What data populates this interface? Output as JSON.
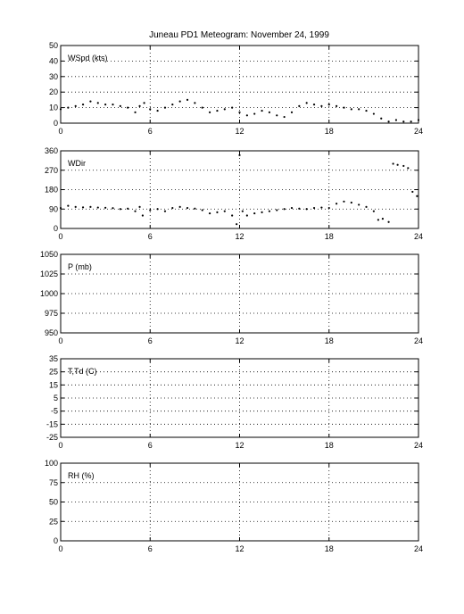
{
  "figure": {
    "title": "Juneau PD1 Meteogram:  November 24, 1999"
  },
  "chart_data": [
    {
      "type": "scatter",
      "label": "WSpd (kts)",
      "xlim": [
        0,
        24
      ],
      "ylim": [
        0,
        50
      ],
      "xticks": [
        0,
        6,
        12,
        18,
        24
      ],
      "yticks": [
        0,
        10,
        20,
        30,
        40,
        50
      ],
      "grid": true,
      "series": [
        {
          "x": [
            0,
            0.5,
            1,
            1.5,
            2,
            2.5,
            3,
            3.5,
            4,
            4.5,
            5,
            5.3,
            5.6,
            6,
            6.5,
            7,
            7.5,
            8,
            8.5,
            9,
            9.5,
            10,
            10.5,
            11,
            11.5,
            12,
            12.5,
            13,
            13.5,
            14,
            14.5,
            15,
            15.5,
            16,
            16.5,
            17,
            17.5,
            18,
            18.5,
            19,
            19.5,
            20,
            20.5,
            21,
            21.5,
            22,
            22.5,
            23,
            23.5,
            24
          ],
          "values": [
            9,
            10,
            11,
            12,
            14,
            13,
            12,
            12,
            11,
            10,
            7,
            11,
            13,
            9,
            8,
            10,
            12,
            14,
            15,
            13,
            10,
            7,
            8,
            9,
            10,
            7,
            5,
            6,
            8,
            7,
            5,
            4,
            7,
            11,
            13,
            12,
            11,
            12,
            11,
            10,
            9,
            9,
            8,
            6,
            3,
            1,
            2,
            1,
            1,
            2
          ]
        }
      ]
    },
    {
      "type": "scatter",
      "label": "WDir",
      "xlim": [
        0,
        24
      ],
      "ylim": [
        0,
        360
      ],
      "xticks": [
        0,
        6,
        12,
        18,
        24
      ],
      "yticks": [
        0,
        90,
        180,
        270,
        360
      ],
      "grid": true,
      "series": [
        {
          "x": [
            0,
            0.5,
            1,
            1.5,
            2,
            2.5,
            3,
            3.5,
            4,
            4.5,
            5,
            5.3,
            5.5,
            6,
            6.5,
            7,
            7.5,
            8,
            8.5,
            9,
            9.5,
            10,
            10.5,
            11,
            11.5,
            11.8,
            12,
            12.2,
            12.5,
            13,
            13.5,
            14,
            14.5,
            15,
            15.5,
            16,
            16.5,
            17,
            17.5,
            18,
            18.5,
            19,
            19.5,
            20,
            20.5,
            21,
            21.3,
            21.6,
            22,
            22.3,
            22.6,
            23,
            23.3,
            23.6,
            23.9
          ],
          "values": [
            95,
            105,
            100,
            98,
            100,
            97,
            96,
            94,
            90,
            92,
            80,
            100,
            60,
            85,
            90,
            80,
            95,
            100,
            95,
            92,
            85,
            70,
            75,
            80,
            60,
            20,
            340,
            80,
            60,
            70,
            75,
            80,
            85,
            90,
            95,
            92,
            90,
            95,
            97,
            95,
            115,
            125,
            120,
            110,
            100,
            80,
            40,
            45,
            30,
            300,
            295,
            290,
            280,
            170,
            150
          ]
        }
      ]
    },
    {
      "type": "line",
      "label": "P (mb)",
      "xlim": [
        0,
        24
      ],
      "ylim": [
        950,
        1050
      ],
      "xticks": [
        0,
        6,
        12,
        18,
        24
      ],
      "yticks": [
        950,
        975,
        1000,
        1025,
        1050
      ],
      "grid": true,
      "series": []
    },
    {
      "type": "line",
      "label": "T,Td (C)",
      "xlim": [
        0,
        24
      ],
      "ylim": [
        -25,
        35
      ],
      "xticks": [
        0,
        6,
        12,
        18,
        24
      ],
      "yticks": [
        -25,
        -15,
        -5,
        5,
        15,
        25,
        35
      ],
      "grid": true,
      "series": []
    },
    {
      "type": "line",
      "label": "RH (%)",
      "xlim": [
        0,
        24
      ],
      "ylim": [
        0,
        100
      ],
      "xticks": [
        0,
        6,
        12,
        18,
        24
      ],
      "yticks": [
        0,
        25,
        50,
        75,
        100
      ],
      "grid": true,
      "series": []
    }
  ]
}
